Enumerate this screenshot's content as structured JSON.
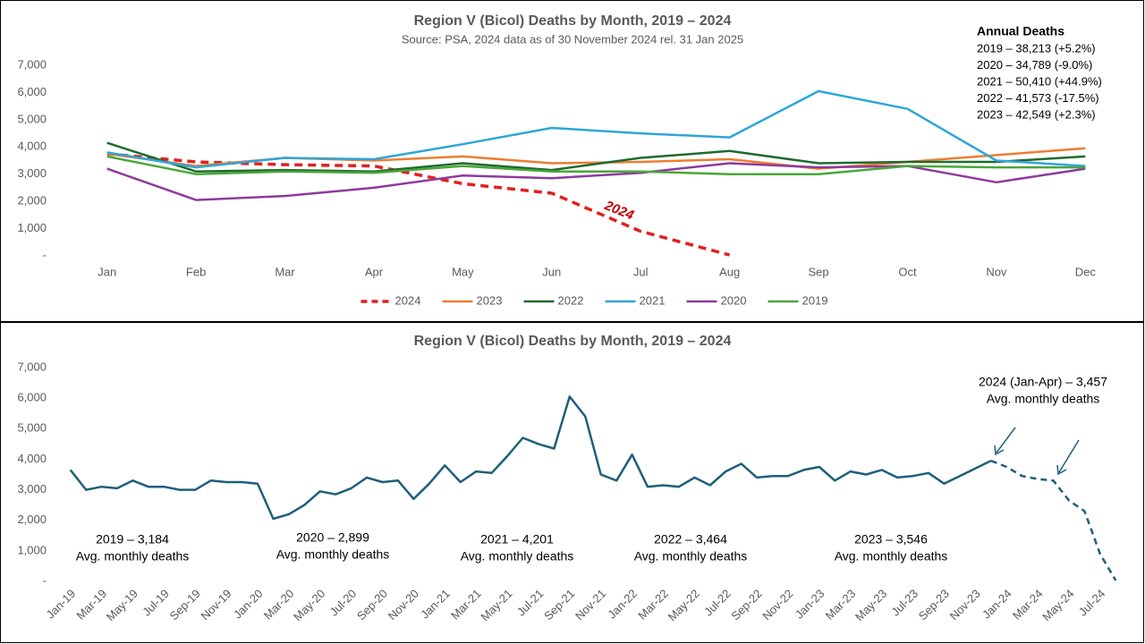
{
  "chart_data": [
    {
      "type": "line",
      "title": "Region V (Bicol) Deaths by Month, 2019 – 2024",
      "subtitle": "Source: PSA, 2024 data as of 30 November 2024 rel. 31 Jan 2025",
      "categories": [
        "Jan",
        "Feb",
        "Mar",
        "Apr",
        "May",
        "Jun",
        "Jul",
        "Aug",
        "Sep",
        "Oct",
        "Nov",
        "Dec"
      ],
      "ylim": [
        0,
        7000
      ],
      "yticks": [
        {
          "value": 0,
          "label": "-"
        },
        {
          "value": 1000,
          "label": "1,000"
        },
        {
          "value": 2000,
          "label": "2,000"
        },
        {
          "value": 3000,
          "label": "3,000"
        },
        {
          "value": 4000,
          "label": "4,000"
        },
        {
          "value": 5000,
          "label": "5,000"
        },
        {
          "value": 6000,
          "label": "6,000"
        },
        {
          "value": 7000,
          "label": "7,000"
        }
      ],
      "grid": false,
      "legend": "bottom",
      "series": [
        {
          "name": "2024",
          "color": "#e02020",
          "dash": true,
          "values": [
            3750,
            3450,
            3350,
            3300,
            2650,
            2300,
            900,
            30,
            null,
            null,
            null,
            null
          ]
        },
        {
          "name": "2023",
          "color": "#ed7d31",
          "values": [
            3750,
            3300,
            3600,
            3500,
            3650,
            3400,
            3450,
            3550,
            3200,
            3450,
            3700,
            3950
          ]
        },
        {
          "name": "2022",
          "color": "#1e6b2e",
          "values": [
            4150,
            3100,
            3150,
            3100,
            3400,
            3150,
            3600,
            3850,
            3400,
            3450,
            3450,
            3650
          ]
        },
        {
          "name": "2021",
          "color": "#2ea6d8",
          "values": [
            3800,
            3250,
            3600,
            3550,
            4100,
            4700,
            4500,
            4350,
            6050,
            5400,
            3500,
            3300
          ]
        },
        {
          "name": "2020",
          "color": "#8e3a9e",
          "values": [
            3200,
            2050,
            2200,
            2500,
            2950,
            2850,
            3050,
            3400,
            3250,
            3300,
            2700,
            3200
          ]
        },
        {
          "name": "2019",
          "color": "#4aa63a",
          "values": [
            3650,
            3000,
            3100,
            3050,
            3300,
            3100,
            3100,
            3000,
            3000,
            3300,
            3250,
            3250
          ]
        }
      ],
      "annotations": [
        "2024"
      ],
      "annual_title": "Annual Deaths",
      "annual_lines": [
        "2019 – 38,213 (+5.2%)",
        "2020 – 34,789 (-9.0%)",
        "2021 – 50,410 (+44.9%)",
        "2022 – 41,573 (-17.5%)",
        "2023 – 42,549 (+2.3%)"
      ]
    },
    {
      "type": "line",
      "title": "Region V (Bicol) Deaths by Month, 2019 – 2024",
      "categories": [
        "Jan-19",
        null,
        "Mar-19",
        null,
        "May-19",
        null,
        "Jul-19",
        null,
        "Sep-19",
        null,
        "Nov-19",
        null,
        "Jan-20",
        null,
        "Mar-20",
        null,
        "May-20",
        null,
        "Jul-20",
        null,
        "Sep-20",
        null,
        "Nov-20",
        null,
        "Jan-21",
        null,
        "Mar-21",
        null,
        "May-21",
        null,
        "Jul-21",
        null,
        "Sep-21",
        null,
        "Nov-21",
        null,
        "Jan-22",
        null,
        "Mar-22",
        null,
        "May-22",
        null,
        "Jul-22",
        null,
        "Sep-22",
        null,
        "Nov-22",
        null,
        "Jan-23",
        null,
        "Mar-23",
        null,
        "May-23",
        null,
        "Jul-23",
        null,
        "Sep-23",
        null,
        "Nov-23",
        null,
        "Jan-24",
        null,
        "Mar-24",
        null,
        "May-24",
        null,
        "Jul-24",
        null
      ],
      "ylim": [
        0,
        7000
      ],
      "yticks": [
        {
          "value": 0,
          "label": "-"
        },
        {
          "value": 1000,
          "label": "1,000"
        },
        {
          "value": 2000,
          "label": "2,000"
        },
        {
          "value": 3000,
          "label": "3,000"
        },
        {
          "value": 4000,
          "label": "4,000"
        },
        {
          "value": 5000,
          "label": "5,000"
        },
        {
          "value": 6000,
          "label": "6,000"
        },
        {
          "value": 7000,
          "label": "7,000"
        }
      ],
      "grid": false,
      "series": [
        {
          "color": "#1f5f7a",
          "values": [
            3650,
            3000,
            3100,
            3050,
            3300,
            3100,
            3100,
            3000,
            3000,
            3300,
            3250,
            3250,
            3200,
            2050,
            2200,
            2500,
            2950,
            2850,
            3050,
            3400,
            3250,
            3300,
            2700,
            3200,
            3800,
            3250,
            3600,
            3550,
            4100,
            4700,
            4500,
            4350,
            6050,
            5400,
            3500,
            3300,
            4150,
            3100,
            3150,
            3100,
            3400,
            3150,
            3600,
            3850,
            3400,
            3450,
            3450,
            3650,
            3750,
            3300,
            3600,
            3500,
            3650,
            3400,
            3450,
            3550,
            3200,
            3450,
            3700,
            3950,
            null,
            null,
            null,
            null,
            null,
            null,
            null,
            null
          ]
        },
        {
          "color": "#1f5f7a",
          "dash": true,
          "values": [
            null,
            null,
            null,
            null,
            null,
            null,
            null,
            null,
            null,
            null,
            null,
            null,
            null,
            null,
            null,
            null,
            null,
            null,
            null,
            null,
            null,
            null,
            null,
            null,
            null,
            null,
            null,
            null,
            null,
            null,
            null,
            null,
            null,
            null,
            null,
            null,
            null,
            null,
            null,
            null,
            null,
            null,
            null,
            null,
            null,
            null,
            null,
            null,
            null,
            null,
            null,
            null,
            null,
            null,
            null,
            null,
            null,
            null,
            null,
            3950,
            3750,
            3450,
            3350,
            3300,
            2650,
            2300,
            900,
            30
          ]
        }
      ],
      "annotations": [
        [
          "2019 – 3,184",
          "Avg. monthly deaths"
        ],
        [
          "2020 – 2,899",
          "Avg. monthly deaths"
        ],
        [
          "2021 – 4,201",
          "Avg. monthly deaths"
        ],
        [
          "2022 – 3,464",
          "Avg. monthly deaths"
        ],
        [
          "2023 – 3,546",
          "Avg. monthly deaths"
        ],
        [
          "2024 (Jan-Apr) – 3,457",
          "Avg. monthly deaths"
        ]
      ]
    }
  ]
}
